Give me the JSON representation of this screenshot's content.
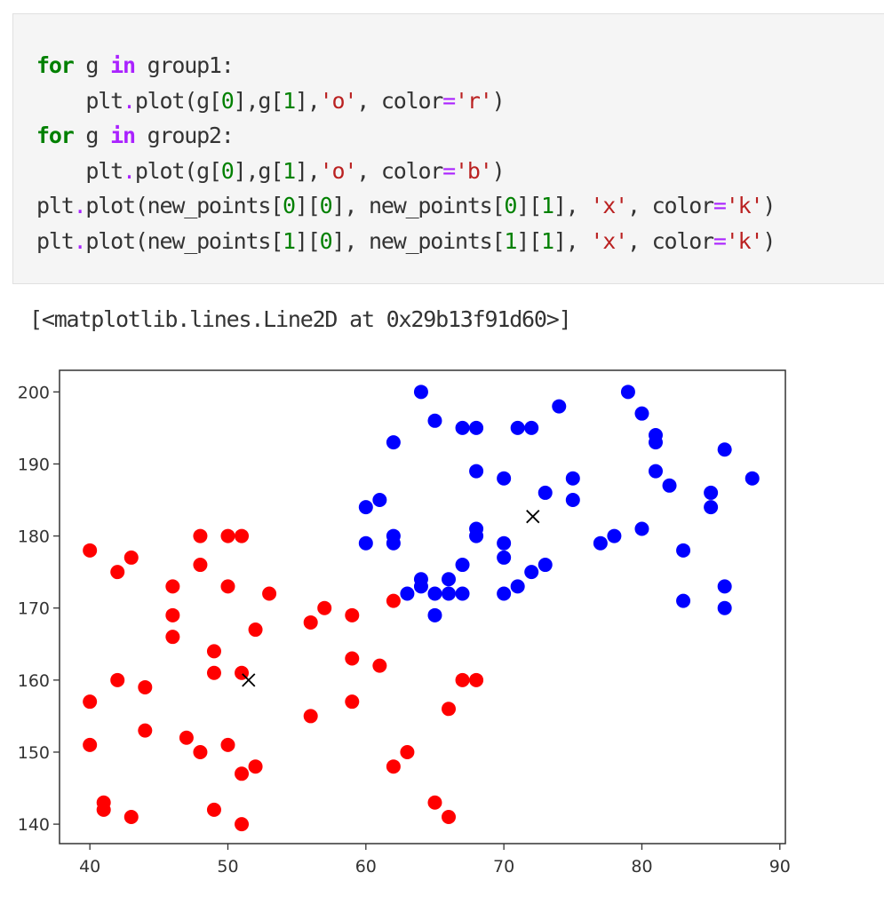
{
  "code_cell": {
    "lines": [
      [
        {
          "t": "for",
          "c": "kw"
        },
        {
          "t": " g ",
          "c": ""
        },
        {
          "t": "in",
          "c": "in"
        },
        {
          "t": " group1:",
          "c": ""
        }
      ],
      [
        {
          "t": "    plt",
          "c": ""
        },
        {
          "t": ".",
          "c": "op"
        },
        {
          "t": "plot(g[",
          "c": ""
        },
        {
          "t": "0",
          "c": "num"
        },
        {
          "t": "],g[",
          "c": ""
        },
        {
          "t": "1",
          "c": "num"
        },
        {
          "t": "],",
          "c": ""
        },
        {
          "t": "'o'",
          "c": "str"
        },
        {
          "t": ", color",
          "c": ""
        },
        {
          "t": "=",
          "c": "op"
        },
        {
          "t": "'r'",
          "c": "str"
        },
        {
          "t": ")",
          "c": ""
        }
      ],
      [
        {
          "t": "for",
          "c": "kw"
        },
        {
          "t": " g ",
          "c": ""
        },
        {
          "t": "in",
          "c": "in"
        },
        {
          "t": " group2:",
          "c": ""
        }
      ],
      [
        {
          "t": "    plt",
          "c": ""
        },
        {
          "t": ".",
          "c": "op"
        },
        {
          "t": "plot(g[",
          "c": ""
        },
        {
          "t": "0",
          "c": "num"
        },
        {
          "t": "],g[",
          "c": ""
        },
        {
          "t": "1",
          "c": "num"
        },
        {
          "t": "],",
          "c": ""
        },
        {
          "t": "'o'",
          "c": "str"
        },
        {
          "t": ", color",
          "c": ""
        },
        {
          "t": "=",
          "c": "op"
        },
        {
          "t": "'b'",
          "c": "str"
        },
        {
          "t": ")",
          "c": ""
        }
      ],
      [
        {
          "t": "plt",
          "c": ""
        },
        {
          "t": ".",
          "c": "op"
        },
        {
          "t": "plot(new_points[",
          "c": ""
        },
        {
          "t": "0",
          "c": "num"
        },
        {
          "t": "][",
          "c": ""
        },
        {
          "t": "0",
          "c": "num"
        },
        {
          "t": "], new_points[",
          "c": ""
        },
        {
          "t": "0",
          "c": "num"
        },
        {
          "t": "][",
          "c": ""
        },
        {
          "t": "1",
          "c": "num"
        },
        {
          "t": "], ",
          "c": ""
        },
        {
          "t": "'x'",
          "c": "str"
        },
        {
          "t": ", color",
          "c": ""
        },
        {
          "t": "=",
          "c": "op"
        },
        {
          "t": "'k'",
          "c": "str"
        },
        {
          "t": ")",
          "c": ""
        }
      ],
      [
        {
          "t": "plt",
          "c": ""
        },
        {
          "t": ".",
          "c": "op"
        },
        {
          "t": "plot(new_points[",
          "c": ""
        },
        {
          "t": "1",
          "c": "num"
        },
        {
          "t": "][",
          "c": ""
        },
        {
          "t": "0",
          "c": "num"
        },
        {
          "t": "], new_points[",
          "c": ""
        },
        {
          "t": "1",
          "c": "num"
        },
        {
          "t": "][",
          "c": ""
        },
        {
          "t": "1",
          "c": "num"
        },
        {
          "t": "], ",
          "c": ""
        },
        {
          "t": "'x'",
          "c": "str"
        },
        {
          "t": ", color",
          "c": ""
        },
        {
          "t": "=",
          "c": "op"
        },
        {
          "t": "'k'",
          "c": "str"
        },
        {
          "t": ")",
          "c": ""
        }
      ]
    ]
  },
  "output": {
    "text": "[<matplotlib.lines.Line2D at 0x29b13f91d60>]"
  },
  "chart_data": {
    "type": "scatter",
    "xlim": [
      37.8,
      90.4
    ],
    "ylim": [
      137.3,
      203.0
    ],
    "xticks": [
      40,
      50,
      60,
      70,
      80,
      90
    ],
    "yticks": [
      140,
      150,
      160,
      170,
      180,
      190,
      200
    ],
    "grid": false,
    "series": [
      {
        "color": "#ff0000",
        "marker": "o",
        "points": [
          [
            40,
            178
          ],
          [
            42,
            175
          ],
          [
            43,
            177
          ],
          [
            48,
            180
          ],
          [
            50,
            180
          ],
          [
            51,
            180
          ],
          [
            48,
            176
          ],
          [
            46,
            173
          ],
          [
            50,
            173
          ],
          [
            53,
            172
          ],
          [
            46,
            169
          ],
          [
            46,
            166
          ],
          [
            52,
            167
          ],
          [
            49,
            164
          ],
          [
            56,
            168
          ],
          [
            57,
            170
          ],
          [
            59,
            169
          ],
          [
            62,
            171
          ],
          [
            59,
            163
          ],
          [
            61,
            162
          ],
          [
            42,
            160
          ],
          [
            44,
            159
          ],
          [
            49,
            161
          ],
          [
            51,
            161
          ],
          [
            40,
            157
          ],
          [
            59,
            157
          ],
          [
            67,
            160
          ],
          [
            68,
            160
          ],
          [
            56,
            155
          ],
          [
            66,
            156
          ],
          [
            44,
            153
          ],
          [
            47,
            152
          ],
          [
            40,
            151
          ],
          [
            48,
            150
          ],
          [
            50,
            151
          ],
          [
            52,
            148
          ],
          [
            51,
            147
          ],
          [
            62,
            148
          ],
          [
            63,
            150
          ],
          [
            41,
            143
          ],
          [
            41,
            142
          ],
          [
            43,
            141
          ],
          [
            49,
            142
          ],
          [
            51,
            140
          ],
          [
            65,
            143
          ],
          [
            66,
            141
          ]
        ]
      },
      {
        "color": "#0000ff",
        "marker": "o",
        "points": [
          [
            64,
            200
          ],
          [
            65,
            196
          ],
          [
            62,
            193
          ],
          [
            67,
            195
          ],
          [
            68,
            195
          ],
          [
            71,
            195
          ],
          [
            72,
            195
          ],
          [
            74,
            198
          ],
          [
            79,
            200
          ],
          [
            80,
            197
          ],
          [
            81,
            194
          ],
          [
            81,
            193
          ],
          [
            68,
            189
          ],
          [
            70,
            188
          ],
          [
            75,
            188
          ],
          [
            81,
            189
          ],
          [
            82,
            187
          ],
          [
            86,
            192
          ],
          [
            88,
            188
          ],
          [
            60,
            184
          ],
          [
            61,
            185
          ],
          [
            73,
            186
          ],
          [
            75,
            185
          ],
          [
            85,
            186
          ],
          [
            85,
            184
          ],
          [
            60,
            179
          ],
          [
            62,
            180
          ],
          [
            62,
            179
          ],
          [
            68,
            181
          ],
          [
            68,
            180
          ],
          [
            70,
            179
          ],
          [
            77,
            179
          ],
          [
            78,
            180
          ],
          [
            80,
            181
          ],
          [
            70,
            177
          ],
          [
            67,
            176
          ],
          [
            73,
            176
          ],
          [
            72,
            175
          ],
          [
            83,
            178
          ],
          [
            64,
            174
          ],
          [
            64,
            173
          ],
          [
            66,
            174
          ],
          [
            63,
            172
          ],
          [
            65,
            172
          ],
          [
            66,
            172
          ],
          [
            67,
            172
          ],
          [
            70,
            172
          ],
          [
            71,
            173
          ],
          [
            65,
            169
          ],
          [
            83,
            171
          ],
          [
            86,
            173
          ],
          [
            86,
            170
          ]
        ]
      },
      {
        "color": "#000000",
        "marker": "x",
        "points": [
          [
            51.5,
            160.0
          ],
          [
            72.1,
            182.7
          ]
        ]
      }
    ]
  }
}
